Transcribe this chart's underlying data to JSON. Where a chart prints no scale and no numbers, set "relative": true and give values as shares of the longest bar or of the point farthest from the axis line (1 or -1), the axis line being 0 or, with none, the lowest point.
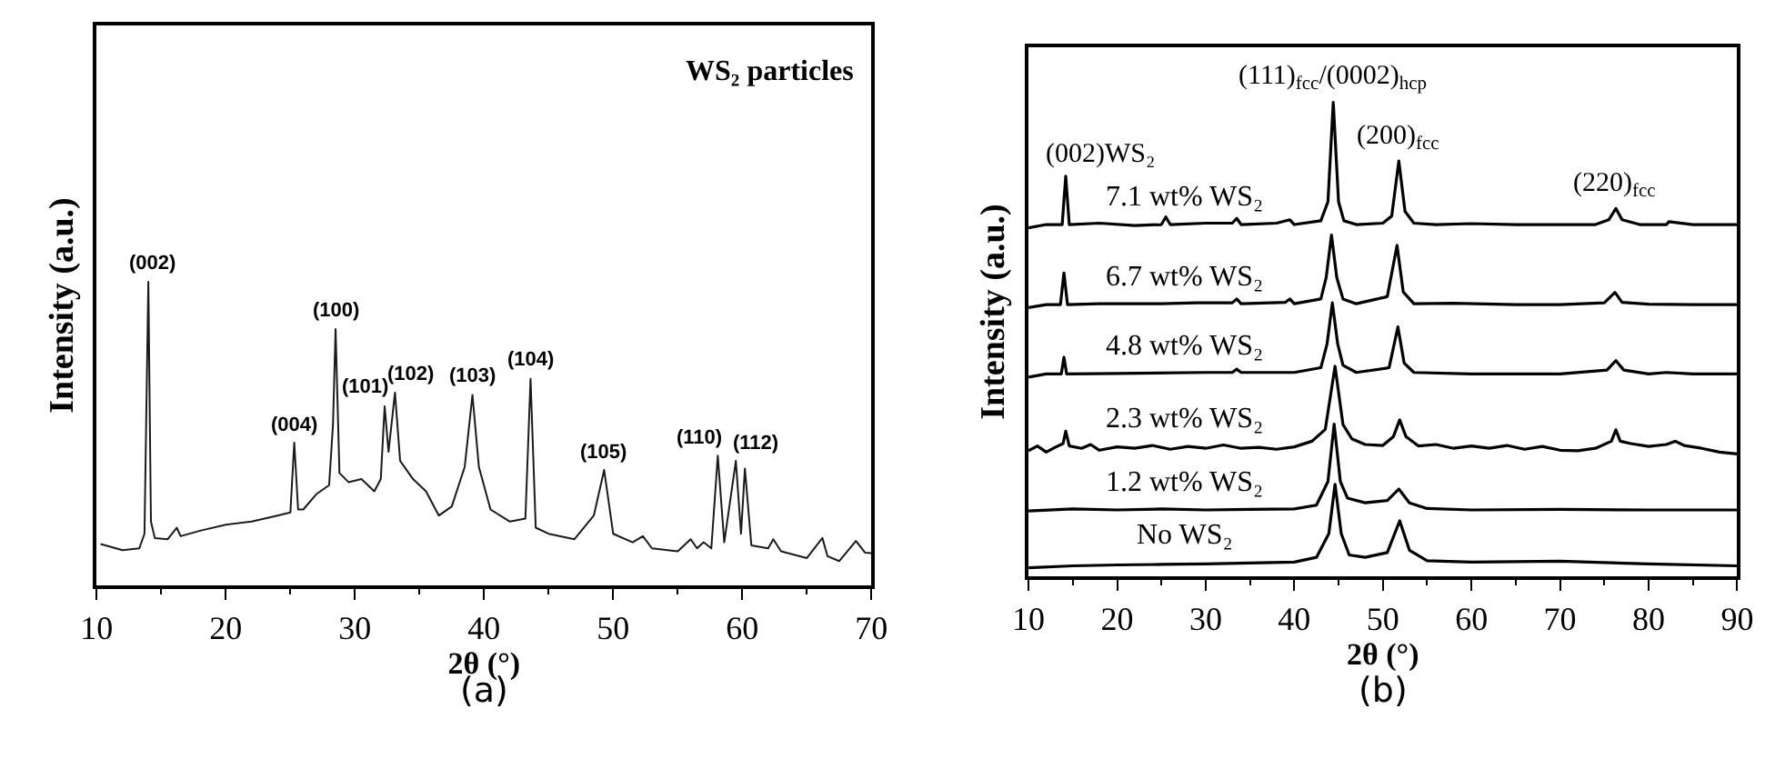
{
  "chart_data": [
    {
      "type": "line",
      "relative": true,
      "xlabel": "2θ (°)",
      "ylabel": "Intensity (a.u.)",
      "xlim": [
        10,
        70
      ],
      "xticks": [
        10,
        20,
        30,
        40,
        50,
        60,
        70
      ],
      "legend": false,
      "line_style": "solid",
      "marker": "none",
      "annotations": [
        "WS₂ particles",
        "(a)",
        {
          "text": "(002)",
          "x": 14.0,
          "y": 1.0
        },
        {
          "text": "(004)",
          "x": 25.3,
          "y": 0.47
        },
        {
          "text": "(100)",
          "x": 28.5,
          "y": 0.844
        },
        {
          "text": "(101)",
          "x": 32.3,
          "y": 0.59
        },
        {
          "text": "(102)",
          "x": 33.1,
          "y": 0.635
        },
        {
          "text": "(103)",
          "x": 39.1,
          "y": 0.627
        },
        {
          "text": "(104)",
          "x": 43.6,
          "y": 0.68
        },
        {
          "text": "(105)",
          "x": 49.3,
          "y": 0.38
        },
        {
          "text": "(110)",
          "x": 58.1,
          "y": 0.427
        },
        {
          "text": "(112)",
          "x": 59.9,
          "y": 0.41
        }
      ],
      "series": [
        {
          "color": "#1a1a1a",
          "x": [
            10.3,
            12,
            13.3,
            13.7,
            14.0,
            14.2,
            14.5,
            15.5,
            16.2,
            16.5,
            18,
            20,
            22,
            24,
            25,
            25.3,
            25.6,
            26,
            27,
            28,
            28.3,
            28.5,
            28.8,
            29.5,
            30.5,
            31.5,
            32.0,
            32.3,
            32.6,
            33.1,
            33.5,
            34.5,
            35.5,
            36.5,
            37.5,
            38.5,
            39.1,
            39.6,
            40.5,
            42,
            43.2,
            43.6,
            44.0,
            45,
            47,
            48.5,
            49.3,
            50,
            51.5,
            52.3,
            53,
            55,
            56,
            56.5,
            57,
            57.6,
            58.1,
            58.6,
            59.5,
            59.9,
            60.2,
            60.7,
            62,
            62.4,
            63,
            65,
            66.2,
            66.6,
            67.5,
            68.8,
            69.5,
            70
          ],
          "values": [
            0.136,
            0.116,
            0.122,
            0.17,
            1.0,
            0.21,
            0.156,
            0.152,
            0.19,
            0.162,
            0.18,
            0.2,
            0.21,
            0.23,
            0.24,
            0.47,
            0.25,
            0.25,
            0.3,
            0.33,
            0.53,
            0.844,
            0.37,
            0.34,
            0.35,
            0.31,
            0.35,
            0.59,
            0.44,
            0.635,
            0.41,
            0.35,
            0.31,
            0.23,
            0.26,
            0.39,
            0.627,
            0.39,
            0.25,
            0.21,
            0.22,
            0.68,
            0.19,
            0.17,
            0.152,
            0.23,
            0.38,
            0.17,
            0.142,
            0.162,
            0.122,
            0.112,
            0.152,
            0.122,
            0.142,
            0.122,
            0.427,
            0.142,
            0.41,
            0.17,
            0.385,
            0.132,
            0.122,
            0.152,
            0.112,
            0.09,
            0.156,
            0.096,
            0.08,
            0.146,
            0.108,
            0.106
          ]
        }
      ]
    },
    {
      "type": "line",
      "relative": true,
      "xlabel": "2θ (°)",
      "ylabel": "Intensity (a.u.)",
      "xlim": [
        10,
        90
      ],
      "xticks": [
        10,
        20,
        30,
        40,
        50,
        60,
        70,
        80,
        90
      ],
      "legend": false,
      "line_style": "solid",
      "marker": "none",
      "annotations": [
        "(b)",
        {
          "text": "(002)WS₂",
          "x": 14.2,
          "y": 0.844
        },
        {
          "text": "(111)$_{fcc}$/(0002)$_{hcp}$",
          "x": 44.4,
          "y": 1.0
        },
        {
          "text": "(200)$_{fcc}$",
          "x": 51.8,
          "y": 0.876
        },
        {
          "text": "(220)$_{fcc}$",
          "x": 76.3,
          "y": 0.776
        }
      ],
      "series": [
        {
          "name": "7.1 wt% WS₂",
          "color": "#000000",
          "x": [
            10,
            12,
            13.8,
            14.2,
            14.6,
            18,
            22,
            25,
            25.5,
            26,
            30,
            33,
            33.5,
            34,
            38,
            39.5,
            40,
            43,
            43.8,
            44.4,
            45,
            45.6,
            47,
            50,
            51,
            51.8,
            52.5,
            53.5,
            56,
            60,
            65,
            70,
            74,
            75.5,
            76.3,
            77,
            79,
            82,
            82.3,
            85,
            90
          ],
          "values": [
            0.735,
            0.742,
            0.742,
            0.844,
            0.742,
            0.745,
            0.74,
            0.742,
            0.758,
            0.742,
            0.745,
            0.745,
            0.755,
            0.742,
            0.745,
            0.752,
            0.742,
            0.75,
            0.79,
            1.0,
            0.79,
            0.75,
            0.742,
            0.745,
            0.76,
            0.876,
            0.77,
            0.745,
            0.742,
            0.744,
            0.742,
            0.742,
            0.742,
            0.752,
            0.776,
            0.752,
            0.742,
            0.742,
            0.748,
            0.742,
            0.742
          ]
        },
        {
          "name": "6.7 wt% WS₂",
          "color": "#000000",
          "x": [
            10,
            12,
            13.6,
            14.0,
            14.4,
            18,
            25,
            29,
            33,
            33.5,
            34,
            39,
            39.5,
            40,
            43,
            43.6,
            44.2,
            44.8,
            45.5,
            47,
            50.5,
            51.6,
            52.3,
            53.5,
            58,
            65,
            70,
            75,
            76.2,
            77,
            80,
            85,
            90
          ],
          "values": [
            0.567,
            0.573,
            0.573,
            0.64,
            0.573,
            0.575,
            0.575,
            0.577,
            0.577,
            0.585,
            0.575,
            0.578,
            0.585,
            0.575,
            0.585,
            0.63,
            0.72,
            0.63,
            0.585,
            0.575,
            0.59,
            0.698,
            0.6,
            0.575,
            0.576,
            0.573,
            0.573,
            0.577,
            0.599,
            0.578,
            0.574,
            0.573,
            0.573
          ]
        },
        {
          "name": "4.8 wt% WS₂",
          "color": "#000000",
          "x": [
            10,
            12,
            13.7,
            14.0,
            14.3,
            20,
            30,
            33,
            33.5,
            34,
            40,
            43,
            43.7,
            44.3,
            44.9,
            45.5,
            47,
            50.7,
            51.7,
            52.4,
            53.5,
            60,
            70,
            75.3,
            76.3,
            77.2,
            80,
            82,
            85,
            90
          ],
          "values": [
            0.42,
            0.427,
            0.427,
            0.462,
            0.427,
            0.428,
            0.43,
            0.43,
            0.437,
            0.43,
            0.43,
            0.44,
            0.49,
            0.577,
            0.49,
            0.445,
            0.43,
            0.44,
            0.526,
            0.45,
            0.43,
            0.427,
            0.427,
            0.435,
            0.455,
            0.435,
            0.427,
            0.43,
            0.427,
            0.427
          ]
        },
        {
          "name": "2.3 wt% WS₂",
          "color": "#000000",
          "x": [
            10,
            11,
            12,
            13,
            13.9,
            14.2,
            14.6,
            16,
            17,
            18,
            20,
            22,
            24,
            26,
            28,
            30,
            32,
            34,
            36,
            38,
            40,
            42,
            43.5,
            44.6,
            45.5,
            46.5,
            48,
            50,
            51.2,
            51.9,
            52.6,
            54,
            56,
            58,
            60,
            62,
            64,
            66,
            68,
            70,
            72,
            74,
            75.8,
            76.3,
            76.8,
            78,
            80,
            82,
            83,
            84,
            86,
            88,
            90
          ],
          "values": [
            0.265,
            0.275,
            0.262,
            0.272,
            0.28,
            0.306,
            0.275,
            0.27,
            0.278,
            0.266,
            0.273,
            0.27,
            0.276,
            0.268,
            0.274,
            0.27,
            0.277,
            0.27,
            0.272,
            0.268,
            0.273,
            0.285,
            0.31,
            0.443,
            0.32,
            0.29,
            0.278,
            0.276,
            0.295,
            0.33,
            0.295,
            0.275,
            0.278,
            0.27,
            0.275,
            0.27,
            0.276,
            0.268,
            0.274,
            0.266,
            0.265,
            0.27,
            0.285,
            0.309,
            0.285,
            0.28,
            0.274,
            0.278,
            0.285,
            0.276,
            0.27,
            0.262,
            0.258
          ]
        },
        {
          "name": "1.2 wt% WS₂",
          "color": "#000000",
          "x": [
            10,
            15,
            20,
            25,
            30,
            35,
            40,
            42.5,
            43.8,
            44.5,
            45.2,
            46,
            48,
            50.5,
            51.8,
            53,
            55,
            60,
            70,
            80,
            90
          ],
          "values": [
            0.138,
            0.142,
            0.14,
            0.142,
            0.14,
            0.141,
            0.142,
            0.15,
            0.2,
            0.321,
            0.2,
            0.165,
            0.155,
            0.16,
            0.184,
            0.155,
            0.143,
            0.14,
            0.141,
            0.14,
            0.14
          ]
        },
        {
          "name": "No WS₂",
          "color": "#000000",
          "x": [
            10,
            15,
            20,
            25,
            30,
            35,
            40,
            42.5,
            43.9,
            44.6,
            45.3,
            46.2,
            48,
            50.5,
            51.9,
            53,
            55,
            60,
            70,
            80,
            90
          ],
          "values": [
            0.018,
            0.022,
            0.024,
            0.025,
            0.026,
            0.028,
            0.03,
            0.04,
            0.09,
            0.194,
            0.09,
            0.045,
            0.04,
            0.05,
            0.117,
            0.055,
            0.033,
            0.03,
            0.032,
            0.026,
            0.022
          ]
        }
      ]
    }
  ]
}
